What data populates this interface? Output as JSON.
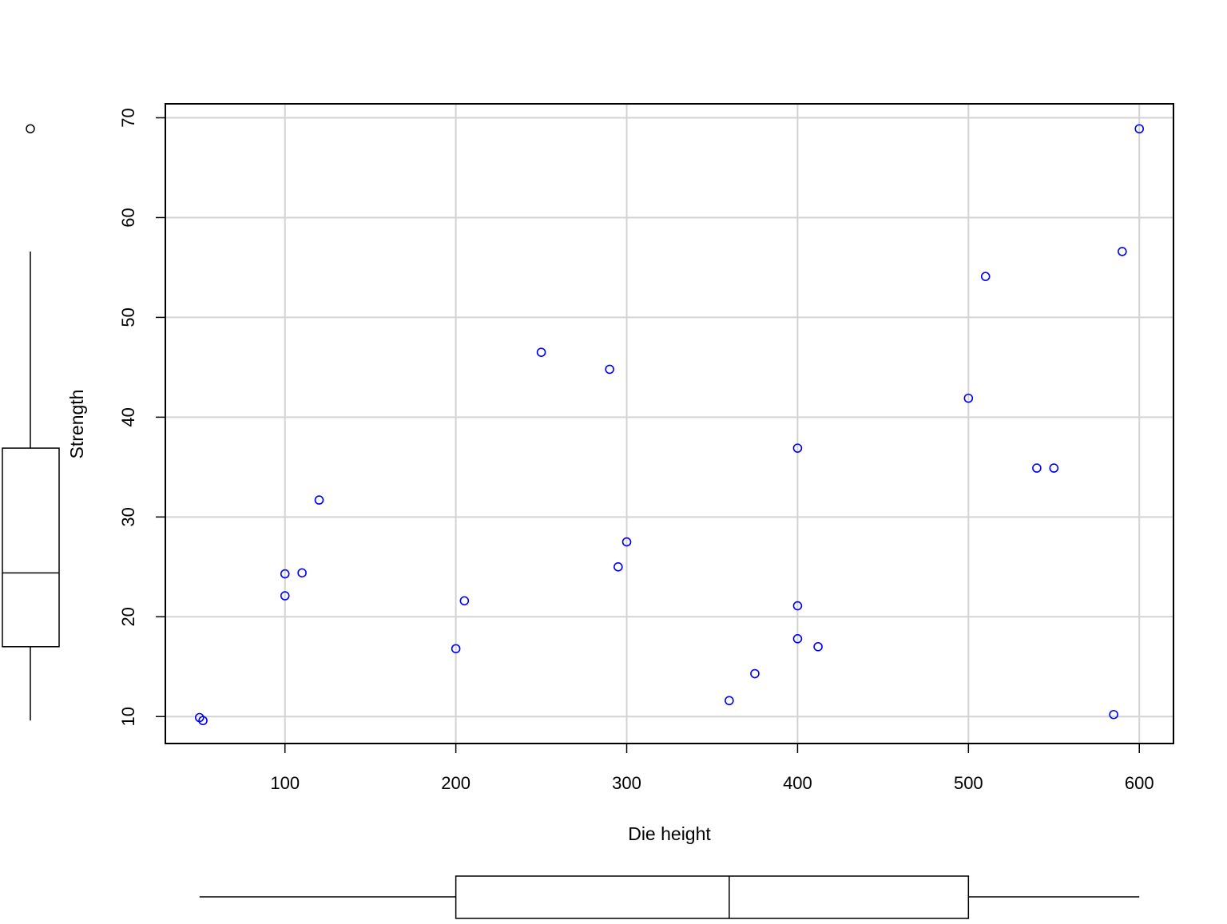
{
  "chart_data": {
    "type": "scatter",
    "title": "",
    "xlabel": "Die height",
    "ylabel": "Strength",
    "xlim": [
      30,
      620
    ],
    "ylim": [
      7.3,
      71.4
    ],
    "x_ticks": [
      100,
      200,
      300,
      400,
      500,
      600
    ],
    "y_ticks": [
      10,
      20,
      30,
      40,
      50,
      60,
      70
    ],
    "grid": true,
    "point_color": "#0000ff",
    "series": [
      {
        "points": [
          {
            "x": 50,
            "y": 9.9
          },
          {
            "x": 52,
            "y": 9.6
          },
          {
            "x": 100,
            "y": 24.3
          },
          {
            "x": 100,
            "y": 22.1
          },
          {
            "x": 110,
            "y": 24.4
          },
          {
            "x": 120,
            "y": 31.7
          },
          {
            "x": 200,
            "y": 16.8
          },
          {
            "x": 205,
            "y": 21.6
          },
          {
            "x": 250,
            "y": 46.5
          },
          {
            "x": 290,
            "y": 44.8
          },
          {
            "x": 295,
            "y": 25.0
          },
          {
            "x": 300,
            "y": 27.5
          },
          {
            "x": 360,
            "y": 11.6
          },
          {
            "x": 375,
            "y": 14.3
          },
          {
            "x": 400,
            "y": 36.9
          },
          {
            "x": 400,
            "y": 21.1
          },
          {
            "x": 400,
            "y": 17.8
          },
          {
            "x": 412,
            "y": 17.0
          },
          {
            "x": 500,
            "y": 41.9
          },
          {
            "x": 510,
            "y": 54.1
          },
          {
            "x": 540,
            "y": 34.9
          },
          {
            "x": 550,
            "y": 34.9
          },
          {
            "x": 585,
            "y": 10.2
          },
          {
            "x": 590,
            "y": 56.6
          },
          {
            "x": 600,
            "y": 68.9
          }
        ]
      }
    ],
    "marginal_boxplot_x": {
      "min": 50,
      "q1": 200,
      "median": 360,
      "q3": 500,
      "max": 600
    },
    "marginal_boxplot_y": {
      "min": 9.6,
      "q1": 17.0,
      "median": 24.4,
      "q3": 36.9,
      "max": 56.6,
      "outliers": [
        68.9
      ]
    }
  }
}
